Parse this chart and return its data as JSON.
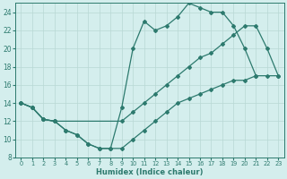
{
  "xlabel": "Humidex (Indice chaleur)",
  "bg_color": "#d4eeed",
  "line_color": "#2d7a6e",
  "grid_color": "#b8d8d4",
  "xlim": [
    -0.5,
    23.5
  ],
  "ylim": [
    8,
    25
  ],
  "xticks": [
    0,
    1,
    2,
    3,
    4,
    5,
    6,
    7,
    8,
    9,
    10,
    11,
    12,
    13,
    14,
    15,
    16,
    17,
    18,
    19,
    20,
    21,
    22,
    23
  ],
  "yticks": [
    8,
    10,
    12,
    14,
    16,
    18,
    20,
    22,
    24
  ],
  "curve1_x": [
    0,
    1,
    2,
    3,
    4,
    5,
    6,
    7,
    8,
    9,
    10,
    11,
    12,
    13,
    14,
    15,
    16,
    17,
    18,
    19,
    20,
    21
  ],
  "curve1_y": [
    14,
    13.5,
    12.2,
    12,
    11,
    10.5,
    9.5,
    9,
    9,
    13.5,
    20,
    23,
    22,
    22.5,
    23.5,
    25,
    24.5,
    24,
    24,
    22.5,
    20,
    17
  ],
  "curve2_x": [
    0,
    1,
    2,
    3,
    9,
    10,
    11,
    12,
    13,
    14,
    15,
    16,
    17,
    18,
    19,
    20,
    21,
    22,
    23
  ],
  "curve2_y": [
    14,
    13.5,
    12.2,
    12,
    12,
    13,
    14,
    15,
    16,
    17,
    18,
    19,
    19.5,
    20.5,
    21.5,
    22.5,
    22.5,
    20,
    17
  ],
  "curve3_x": [
    0,
    1,
    2,
    3,
    4,
    5,
    6,
    7,
    8,
    9,
    10,
    11,
    12,
    13,
    14,
    15,
    16,
    17,
    18,
    19,
    20,
    21,
    22,
    23
  ],
  "curve3_y": [
    14,
    13.5,
    12.2,
    12,
    11,
    10.5,
    9.5,
    9,
    9,
    9,
    10,
    11,
    12,
    13,
    14,
    14.5,
    15,
    15.5,
    16,
    16.5,
    16.5,
    17,
    17,
    17
  ]
}
